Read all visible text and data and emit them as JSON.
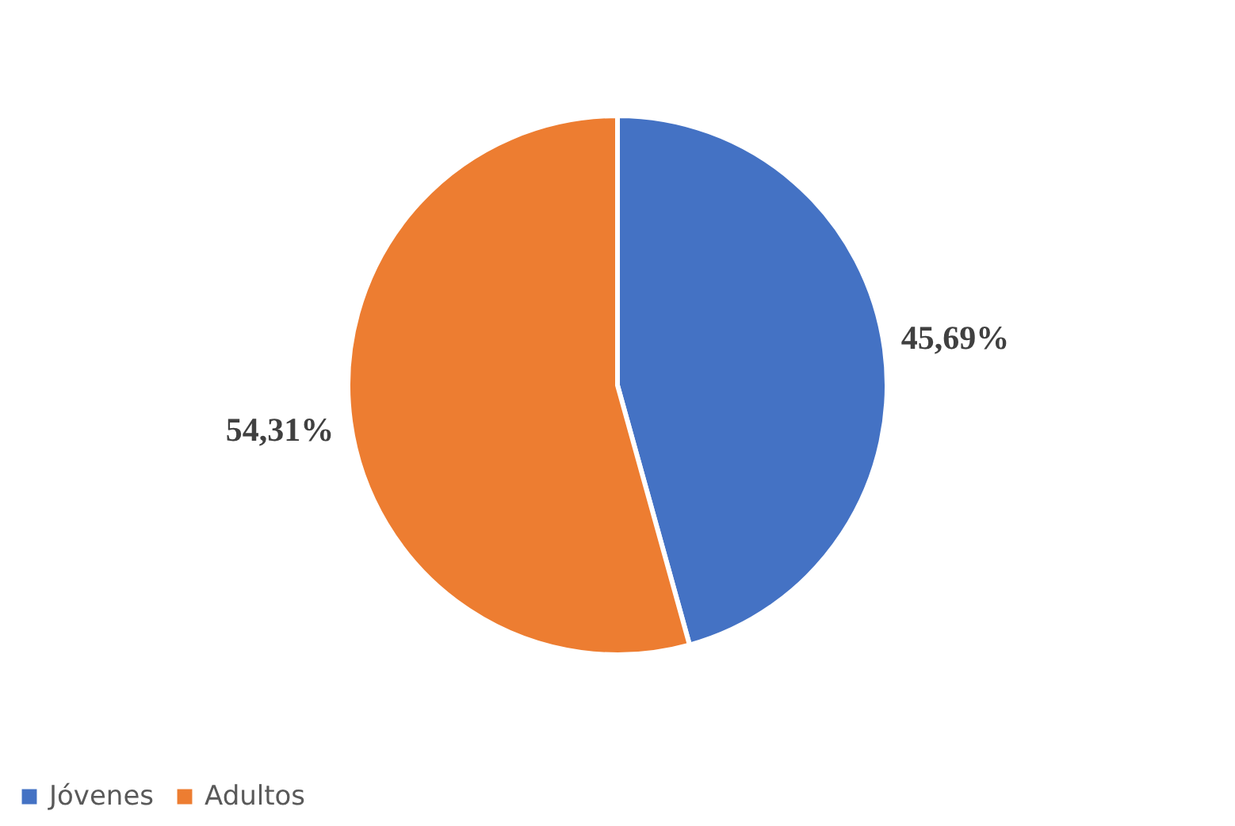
{
  "chart_data": {
    "type": "pie",
    "categories": [
      "Jóvenes",
      "Adultos"
    ],
    "values": [
      45.69,
      54.31
    ],
    "colors": [
      "#4472c4",
      "#ed7d31"
    ],
    "value_labels": [
      "45,69%",
      "54,31%"
    ],
    "legend": "bottom"
  }
}
